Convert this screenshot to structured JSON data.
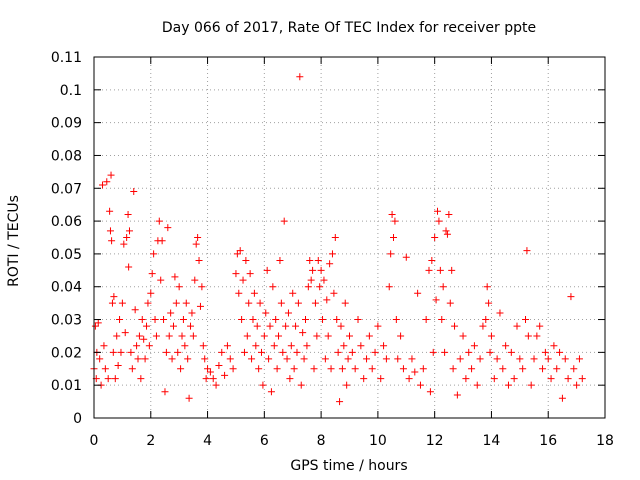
{
  "chart_data": {
    "type": "scatter",
    "title": "Day 066 of 2017, Rate Of TEC Index for receiver ppte",
    "xlabel": "GPS time / hours",
    "ylabel": "ROTI / TECUs",
    "xlim": [
      0,
      18
    ],
    "ylim": [
      0,
      0.11
    ],
    "x_ticks": [
      "0",
      "2",
      "4",
      "6",
      "8",
      "10",
      "12",
      "14",
      "16",
      "18"
    ],
    "y_ticks": [
      "0",
      "0.01",
      "0.02",
      "0.03",
      "0.04",
      "0.05",
      "0.06",
      "0.07",
      "0.08",
      "0.09",
      "0.1",
      "0.11"
    ],
    "grid": true,
    "marker": "+",
    "color": "#ff0000",
    "series": [
      {
        "points": [
          [
            0.0,
            0.015
          ],
          [
            0.05,
            0.028
          ],
          [
            0.08,
            0.012
          ],
          [
            0.1,
            0.02
          ],
          [
            0.15,
            0.029
          ],
          [
            0.2,
            0.018
          ],
          [
            0.25,
            0.01
          ],
          [
            0.3,
            0.071
          ],
          [
            0.35,
            0.022
          ],
          [
            0.4,
            0.015
          ],
          [
            0.45,
            0.072
          ],
          [
            0.5,
            0.012
          ],
          [
            0.55,
            0.063
          ],
          [
            0.58,
            0.057
          ],
          [
            0.6,
            0.074
          ],
          [
            0.62,
            0.054
          ],
          [
            0.65,
            0.035
          ],
          [
            0.68,
            0.02
          ],
          [
            0.7,
            0.037
          ],
          [
            0.75,
            0.012
          ],
          [
            0.8,
            0.025
          ],
          [
            0.85,
            0.016
          ],
          [
            0.9,
            0.03
          ],
          [
            0.95,
            0.02
          ],
          [
            1.0,
            0.035
          ],
          [
            1.05,
            0.053
          ],
          [
            1.1,
            0.026
          ],
          [
            1.15,
            0.055
          ],
          [
            1.2,
            0.062
          ],
          [
            1.22,
            0.046
          ],
          [
            1.25,
            0.057
          ],
          [
            1.3,
            0.02
          ],
          [
            1.35,
            0.015
          ],
          [
            1.4,
            0.069
          ],
          [
            1.45,
            0.033
          ],
          [
            1.5,
            0.022
          ],
          [
            1.55,
            0.018
          ],
          [
            1.6,
            0.025
          ],
          [
            1.65,
            0.012
          ],
          [
            1.7,
            0.03
          ],
          [
            1.75,
            0.024
          ],
          [
            1.8,
            0.018
          ],
          [
            1.85,
            0.028
          ],
          [
            1.9,
            0.035
          ],
          [
            1.95,
            0.022
          ],
          [
            2.0,
            0.038
          ],
          [
            2.05,
            0.044
          ],
          [
            2.1,
            0.05
          ],
          [
            2.15,
            0.03
          ],
          [
            2.2,
            0.025
          ],
          [
            2.25,
            0.054
          ],
          [
            2.3,
            0.06
          ],
          [
            2.35,
            0.042
          ],
          [
            2.4,
            0.054
          ],
          [
            2.45,
            0.03
          ],
          [
            2.5,
            0.008
          ],
          [
            2.55,
            0.02
          ],
          [
            2.6,
            0.058
          ],
          [
            2.65,
            0.025
          ],
          [
            2.7,
            0.032
          ],
          [
            2.75,
            0.018
          ],
          [
            2.8,
            0.028
          ],
          [
            2.85,
            0.043
          ],
          [
            2.9,
            0.035
          ],
          [
            2.95,
            0.02
          ],
          [
            3.0,
            0.04
          ],
          [
            3.05,
            0.015
          ],
          [
            3.1,
            0.025
          ],
          [
            3.15,
            0.03
          ],
          [
            3.2,
            0.022
          ],
          [
            3.25,
            0.035
          ],
          [
            3.3,
            0.018
          ],
          [
            3.35,
            0.006
          ],
          [
            3.4,
            0.028
          ],
          [
            3.45,
            0.032
          ],
          [
            3.5,
            0.025
          ],
          [
            3.55,
            0.042
          ],
          [
            3.6,
            0.053
          ],
          [
            3.65,
            0.055
          ],
          [
            3.7,
            0.048
          ],
          [
            3.75,
            0.034
          ],
          [
            3.8,
            0.04
          ],
          [
            3.85,
            0.022
          ],
          [
            3.9,
            0.018
          ],
          [
            3.95,
            0.012
          ],
          [
            4.0,
            0.015
          ],
          [
            4.1,
            0.014
          ],
          [
            4.2,
            0.012
          ],
          [
            4.3,
            0.01
          ],
          [
            4.4,
            0.016
          ],
          [
            4.5,
            0.02
          ],
          [
            4.6,
            0.013
          ],
          [
            4.7,
            0.022
          ],
          [
            4.8,
            0.018
          ],
          [
            4.9,
            0.015
          ],
          [
            5.0,
            0.044
          ],
          [
            5.05,
            0.05
          ],
          [
            5.1,
            0.038
          ],
          [
            5.15,
            0.051
          ],
          [
            5.2,
            0.03
          ],
          [
            5.25,
            0.042
          ],
          [
            5.3,
            0.02
          ],
          [
            5.35,
            0.048
          ],
          [
            5.4,
            0.025
          ],
          [
            5.45,
            0.035
          ],
          [
            5.5,
            0.044
          ],
          [
            5.55,
            0.018
          ],
          [
            5.6,
            0.03
          ],
          [
            5.65,
            0.038
          ],
          [
            5.7,
            0.022
          ],
          [
            5.75,
            0.028
          ],
          [
            5.8,
            0.015
          ],
          [
            5.85,
            0.035
          ],
          [
            5.9,
            0.02
          ],
          [
            5.95,
            0.01
          ],
          [
            6.0,
            0.025
          ],
          [
            6.05,
            0.032
          ],
          [
            6.1,
            0.045
          ],
          [
            6.15,
            0.018
          ],
          [
            6.2,
            0.028
          ],
          [
            6.25,
            0.008
          ],
          [
            6.3,
            0.04
          ],
          [
            6.35,
            0.022
          ],
          [
            6.4,
            0.03
          ],
          [
            6.45,
            0.015
          ],
          [
            6.5,
            0.025
          ],
          [
            6.55,
            0.048
          ],
          [
            6.6,
            0.035
          ],
          [
            6.65,
            0.02
          ],
          [
            6.7,
            0.06
          ],
          [
            6.75,
            0.028
          ],
          [
            6.8,
            0.018
          ],
          [
            6.85,
            0.032
          ],
          [
            6.9,
            0.012
          ],
          [
            6.95,
            0.022
          ],
          [
            7.0,
            0.038
          ],
          [
            7.05,
            0.015
          ],
          [
            7.1,
            0.028
          ],
          [
            7.15,
            0.02
          ],
          [
            7.2,
            0.035
          ],
          [
            7.25,
            0.104
          ],
          [
            7.3,
            0.01
          ],
          [
            7.35,
            0.026
          ],
          [
            7.4,
            0.018
          ],
          [
            7.45,
            0.03
          ],
          [
            7.5,
            0.022
          ],
          [
            7.55,
            0.04
          ],
          [
            7.6,
            0.048
          ],
          [
            7.65,
            0.042
          ],
          [
            7.7,
            0.045
          ],
          [
            7.75,
            0.015
          ],
          [
            7.8,
            0.035
          ],
          [
            7.85,
            0.025
          ],
          [
            7.9,
            0.048
          ],
          [
            7.95,
            0.04
          ],
          [
            8.0,
            0.045
          ],
          [
            8.05,
            0.03
          ],
          [
            8.1,
            0.042
          ],
          [
            8.15,
            0.018
          ],
          [
            8.2,
            0.036
          ],
          [
            8.25,
            0.025
          ],
          [
            8.3,
            0.047
          ],
          [
            8.35,
            0.015
          ],
          [
            8.4,
            0.05
          ],
          [
            8.45,
            0.038
          ],
          [
            8.5,
            0.055
          ],
          [
            8.55,
            0.03
          ],
          [
            8.6,
            0.02
          ],
          [
            8.65,
            0.005
          ],
          [
            8.7,
            0.028
          ],
          [
            8.75,
            0.015
          ],
          [
            8.8,
            0.022
          ],
          [
            8.85,
            0.035
          ],
          [
            8.9,
            0.01
          ],
          [
            8.95,
            0.018
          ],
          [
            9.0,
            0.025
          ],
          [
            9.1,
            0.02
          ],
          [
            9.2,
            0.015
          ],
          [
            9.3,
            0.03
          ],
          [
            9.4,
            0.022
          ],
          [
            9.5,
            0.012
          ],
          [
            9.6,
            0.018
          ],
          [
            9.7,
            0.025
          ],
          [
            9.8,
            0.015
          ],
          [
            9.9,
            0.02
          ],
          [
            10.0,
            0.028
          ],
          [
            10.1,
            0.012
          ],
          [
            10.2,
            0.022
          ],
          [
            10.3,
            0.018
          ],
          [
            10.4,
            0.04
          ],
          [
            10.45,
            0.05
          ],
          [
            10.5,
            0.062
          ],
          [
            10.55,
            0.055
          ],
          [
            10.6,
            0.06
          ],
          [
            10.65,
            0.03
          ],
          [
            10.7,
            0.018
          ],
          [
            10.8,
            0.025
          ],
          [
            10.9,
            0.015
          ],
          [
            11.0,
            0.049
          ],
          [
            11.1,
            0.012
          ],
          [
            11.2,
            0.018
          ],
          [
            11.3,
            0.014
          ],
          [
            11.4,
            0.038
          ],
          [
            11.5,
            0.01
          ],
          [
            11.6,
            0.015
          ],
          [
            11.7,
            0.03
          ],
          [
            11.8,
            0.045
          ],
          [
            11.85,
            0.008
          ],
          [
            11.9,
            0.048
          ],
          [
            11.95,
            0.02
          ],
          [
            12.0,
            0.055
          ],
          [
            12.05,
            0.036
          ],
          [
            12.1,
            0.063
          ],
          [
            12.15,
            0.06
          ],
          [
            12.2,
            0.045
          ],
          [
            12.25,
            0.03
          ],
          [
            12.3,
            0.04
          ],
          [
            12.35,
            0.02
          ],
          [
            12.4,
            0.057
          ],
          [
            12.45,
            0.056
          ],
          [
            12.5,
            0.062
          ],
          [
            12.55,
            0.035
          ],
          [
            12.6,
            0.045
          ],
          [
            12.65,
            0.015
          ],
          [
            12.7,
            0.028
          ],
          [
            12.8,
            0.007
          ],
          [
            12.9,
            0.018
          ],
          [
            13.0,
            0.025
          ],
          [
            13.1,
            0.012
          ],
          [
            13.2,
            0.02
          ],
          [
            13.3,
            0.015
          ],
          [
            13.4,
            0.022
          ],
          [
            13.5,
            0.01
          ],
          [
            13.6,
            0.018
          ],
          [
            13.7,
            0.028
          ],
          [
            13.8,
            0.03
          ],
          [
            13.85,
            0.04
          ],
          [
            13.9,
            0.035
          ],
          [
            13.95,
            0.02
          ],
          [
            14.0,
            0.025
          ],
          [
            14.1,
            0.012
          ],
          [
            14.2,
            0.018
          ],
          [
            14.3,
            0.032
          ],
          [
            14.4,
            0.015
          ],
          [
            14.5,
            0.022
          ],
          [
            14.6,
            0.01
          ],
          [
            14.7,
            0.02
          ],
          [
            14.8,
            0.012
          ],
          [
            14.9,
            0.028
          ],
          [
            15.0,
            0.018
          ],
          [
            15.1,
            0.015
          ],
          [
            15.2,
            0.03
          ],
          [
            15.25,
            0.051
          ],
          [
            15.3,
            0.025
          ],
          [
            15.4,
            0.01
          ],
          [
            15.5,
            0.018
          ],
          [
            15.6,
            0.025
          ],
          [
            15.7,
            0.028
          ],
          [
            15.8,
            0.015
          ],
          [
            15.9,
            0.02
          ],
          [
            16.0,
            0.018
          ],
          [
            16.1,
            0.012
          ],
          [
            16.2,
            0.022
          ],
          [
            16.3,
            0.015
          ],
          [
            16.4,
            0.02
          ],
          [
            16.5,
            0.006
          ],
          [
            16.6,
            0.018
          ],
          [
            16.7,
            0.012
          ],
          [
            16.8,
            0.037
          ],
          [
            16.9,
            0.015
          ],
          [
            17.0,
            0.01
          ],
          [
            17.1,
            0.018
          ],
          [
            17.2,
            0.012
          ]
        ]
      }
    ]
  }
}
